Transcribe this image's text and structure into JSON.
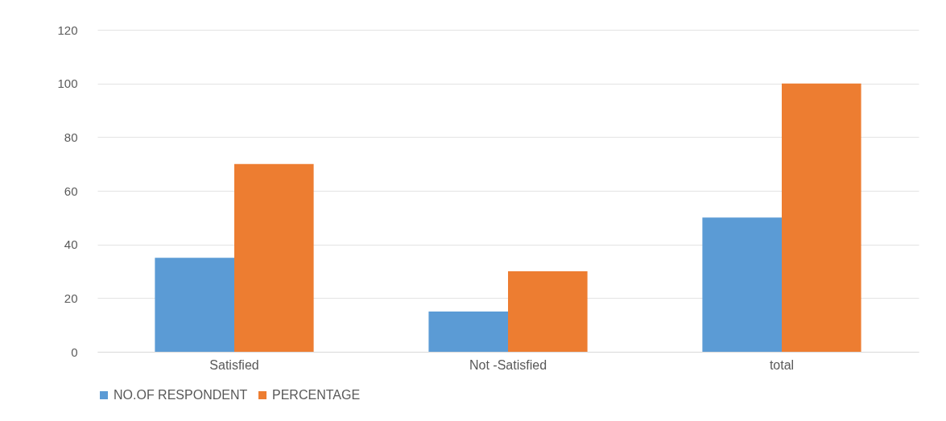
{
  "chart_data": {
    "type": "bar",
    "categories": [
      "Satisfied",
      "Not -Satisfied",
      "total"
    ],
    "series": [
      {
        "name": "NO.OF RESPONDENT",
        "color": "#5b9bd5",
        "values": [
          35,
          15,
          50
        ]
      },
      {
        "name": "PERCENTAGE",
        "color": "#ed7d31",
        "values": [
          70,
          30,
          100
        ]
      }
    ],
    "ylim": [
      0,
      120
    ],
    "yticks": [
      0,
      20,
      40,
      60,
      80,
      100,
      120
    ],
    "grid": "y",
    "legend": "bottom"
  }
}
